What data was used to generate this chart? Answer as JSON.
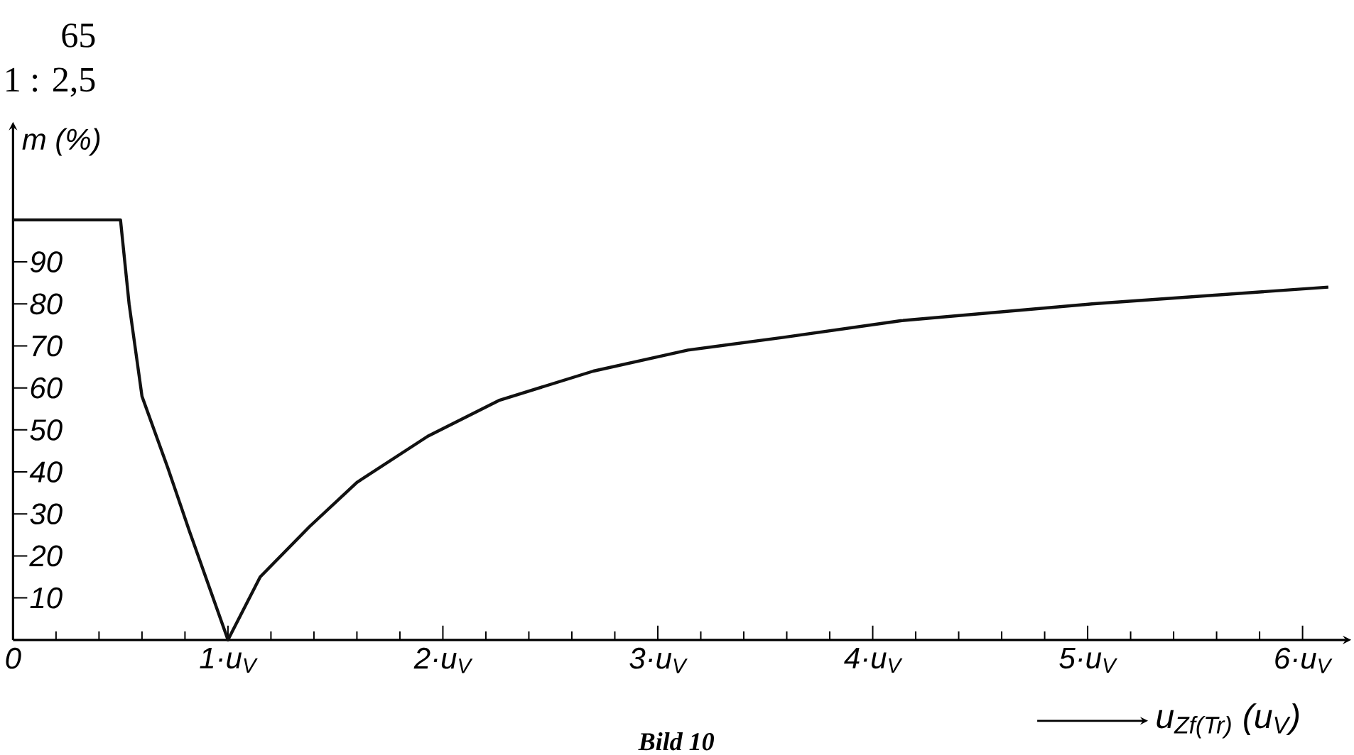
{
  "chart_data": {
    "type": "line",
    "xlabel": "u$_{Zf(Tr)}$ (u$_{V}$)",
    "ylabel": "m (%)",
    "annotations": [
      "65",
      "1 : 2,5",
      "Bild 10"
    ],
    "x": [
      0,
      0.5,
      0.54,
      0.6,
      0.72,
      0.82,
      1,
      1.15,
      1.38,
      1.6,
      1.93,
      2.26,
      2.7,
      3.14,
      3.58,
      4.13,
      5.02,
      6.12
    ],
    "series": [
      {
        "color": "#111111",
        "values": [
          100,
          100,
          80,
          58,
          41,
          26,
          0,
          15,
          27,
          37.5,
          48.5,
          57,
          64,
          69,
          72,
          76,
          80,
          84
        ]
      }
    ],
    "xlim": [
      0,
      6.2
    ],
    "ylim": [
      0,
      122
    ],
    "xticks": [
      0,
      {
        "value": 1,
        "label": "1·u$_{V}$"
      },
      {
        "value": 2,
        "label": "2·u$_{V}$"
      },
      {
        "value": 3,
        "label": "3·u$_{V}$"
      },
      {
        "value": 4,
        "label": "4·u$_{V}$"
      },
      {
        "value": 5,
        "label": "5·u$_{V}$"
      },
      {
        "value": 6,
        "label": "6·u$_{V}$"
      }
    ],
    "yticks": [
      10,
      20,
      30,
      40,
      50,
      60,
      70,
      80,
      90
    ],
    "marker": "none",
    "line_style": "solid",
    "grid": false
  }
}
